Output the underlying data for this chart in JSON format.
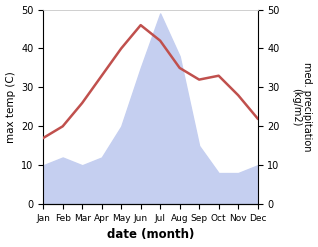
{
  "months": [
    "Jan",
    "Feb",
    "Mar",
    "Apr",
    "May",
    "Jun",
    "Jul",
    "Aug",
    "Sep",
    "Oct",
    "Nov",
    "Dec"
  ],
  "temperature": [
    17,
    20,
    26,
    33,
    40,
    46,
    42,
    35,
    32,
    33,
    28,
    22
  ],
  "precipitation": [
    10,
    12,
    10,
    12,
    20,
    35,
    49,
    38,
    15,
    8,
    8,
    10
  ],
  "temp_color": "#c0504d",
  "precip_fill_color": "#c5cff0",
  "xlabel": "date (month)",
  "ylabel_left": "max temp (C)",
  "ylabel_right": "med. precipitation\n(kg/m2)",
  "ylim": [
    0,
    50
  ],
  "background_color": "#ffffff",
  "line_width": 1.8
}
